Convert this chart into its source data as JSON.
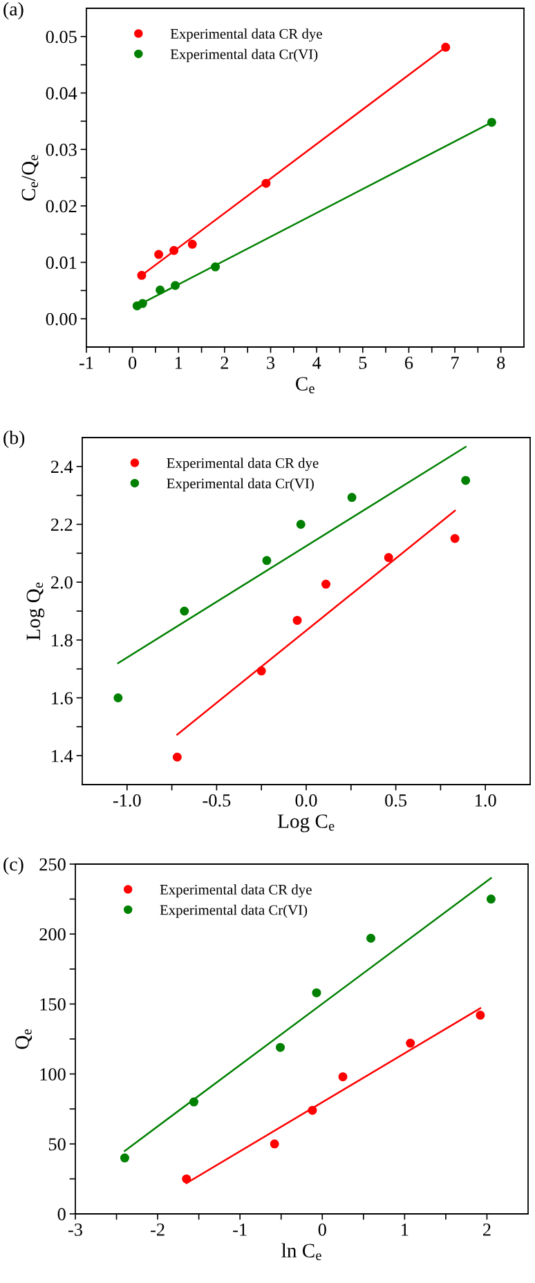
{
  "chart_data": [
    {
      "type": "scatter",
      "title": "(a)",
      "xlabel": "C$_{e}$",
      "ylabel": "C$_{e}$/Q$_{e}$",
      "xlim": [
        -1,
        8.5
      ],
      "xticks": [
        -1,
        {
          "value": -0.5,
          "label": null
        },
        0,
        {
          "value": 0.5,
          "label": null
        },
        1,
        {
          "value": 1.5,
          "label": null
        },
        2,
        {
          "value": 2.5,
          "label": null
        },
        3,
        {
          "value": 3.5,
          "label": null
        },
        4,
        {
          "value": 4.5,
          "label": null
        },
        5,
        {
          "value": 5.5,
          "label": null
        },
        6,
        {
          "value": 6.5,
          "label": null
        },
        7,
        {
          "value": 7.5,
          "label": null
        },
        8
      ],
      "ylim": [
        -0.005,
        0.055
      ],
      "yticks": [
        {
          "value": 0,
          "label": "0.00"
        },
        {
          "value": 0.005,
          "label": null
        },
        {
          "value": 0.01,
          "label": "0.01"
        },
        {
          "value": 0.015,
          "label": null
        },
        {
          "value": 0.02,
          "label": "0.02"
        },
        {
          "value": 0.025,
          "label": null
        },
        {
          "value": 0.03,
          "label": "0.03"
        },
        {
          "value": 0.035,
          "label": null
        },
        {
          "value": 0.04,
          "label": "0.04"
        },
        {
          "value": 0.045,
          "label": null
        },
        {
          "value": 0.05,
          "label": "0.05"
        }
      ],
      "marker": "circle",
      "legend": "top left",
      "grid": false,
      "series": [
        {
          "name": "Experimental data CR dye",
          "color": "#ff0000",
          "x": [
            0.2,
            0.57,
            0.9,
            1.3,
            2.9,
            6.8
          ],
          "values": [
            0.0077,
            0.0114,
            0.0121,
            0.0132,
            0.024,
            0.0481
          ]
        },
        {
          "name": "Experimental data Cr(VI)",
          "color": "#008000",
          "x": [
            0.1,
            0.22,
            0.6,
            0.93,
            1.8,
            7.8
          ],
          "values": [
            0.0023,
            0.0027,
            0.0051,
            0.0059,
            0.0092,
            0.0348
          ]
        },
        {
          "type": "line",
          "marker": "none",
          "color": "#ff0000",
          "x": [
            0.2,
            6.8
          ],
          "values": [
            0.0077,
            0.0481
          ]
        },
        {
          "type": "line",
          "marker": "none",
          "color": "#008000",
          "x": [
            0.1,
            7.8
          ],
          "values": [
            0.0023,
            0.0348
          ]
        }
      ]
    },
    {
      "type": "scatter",
      "title": "(b)",
      "xlabel": "Log C$_{e}$",
      "ylabel": "Log Q$_{e}$",
      "xlim": [
        -1.25,
        1.25
      ],
      "xticks": [
        {
          "value": -1.0,
          "label": "-1.0"
        },
        {
          "value": -0.75,
          "label": null
        },
        {
          "value": -0.5,
          "label": "-0.5"
        },
        {
          "value": -0.25,
          "label": null
        },
        {
          "value": 0,
          "label": "0.0"
        },
        {
          "value": 0.25,
          "label": null
        },
        {
          "value": 0.5,
          "label": "0.5"
        },
        {
          "value": 0.75,
          "label": null
        },
        {
          "value": 1.0,
          "label": "1.0"
        }
      ],
      "ylim": [
        1.3,
        2.5
      ],
      "yticks": [
        1.4,
        {
          "value": 1.5,
          "label": null
        },
        1.6,
        {
          "value": 1.7,
          "label": null
        },
        1.8,
        {
          "value": 1.9,
          "label": null
        },
        {
          "value": 2.0,
          "label": "2.0"
        },
        {
          "value": 2.1,
          "label": null
        },
        2.2,
        {
          "value": 2.3,
          "label": null
        },
        2.4
      ],
      "marker": "circle",
      "legend": "top left",
      "grid": false,
      "series": [
        {
          "name": "Experimental data CR dye",
          "color": "#ff0000",
          "x": [
            -0.72,
            -0.25,
            -0.05,
            0.11,
            0.46,
            0.83
          ],
          "values": [
            1.395,
            1.693,
            1.868,
            1.993,
            2.085,
            2.151
          ]
        },
        {
          "name": "Experimental data Cr(VI)",
          "color": "#008000",
          "x": [
            -1.05,
            -0.68,
            -0.22,
            -0.03,
            0.255,
            0.89
          ],
          "values": [
            1.6,
            1.9,
            2.075,
            2.2,
            2.293,
            2.352
          ]
        },
        {
          "type": "line",
          "marker": "none",
          "color": "#ff0000",
          "x": [
            -0.72,
            0.83
          ],
          "values": [
            1.473,
            2.247
          ]
        },
        {
          "type": "line",
          "marker": "none",
          "color": "#008000",
          "x": [
            -1.05,
            0.89
          ],
          "values": [
            1.72,
            2.468
          ]
        }
      ]
    },
    {
      "type": "scatter",
      "title": "(c)",
      "xlabel": "ln C$_{e}$",
      "ylabel": "Q$_{e}$",
      "xlim": [
        -3,
        2.5
      ],
      "xticks": [
        -3,
        {
          "value": -2.5,
          "label": null
        },
        -2,
        {
          "value": -1.5,
          "label": null
        },
        -1,
        {
          "value": -0.5,
          "label": null
        },
        0,
        {
          "value": 0.5,
          "label": null
        },
        1,
        {
          "value": 1.5,
          "label": null
        },
        2
      ],
      "ylim": [
        0,
        250
      ],
      "yticks": [
        0,
        {
          "value": 25,
          "label": null
        },
        50,
        {
          "value": 75,
          "label": null
        },
        100,
        {
          "value": 125,
          "label": null
        },
        150,
        {
          "value": 175,
          "label": null
        },
        200,
        {
          "value": 225,
          "label": null
        },
        250
      ],
      "marker": "circle",
      "legend": "top left",
      "grid": false,
      "series": [
        {
          "name": "Experimental data CR dye",
          "color": "#ff0000",
          "x": [
            -1.65,
            -0.58,
            -0.12,
            0.25,
            1.07,
            1.92
          ],
          "values": [
            25,
            50,
            74,
            98,
            122,
            142
          ]
        },
        {
          "name": "Experimental data Cr(VI)",
          "color": "#008000",
          "x": [
            -2.4,
            -1.56,
            -0.51,
            -0.07,
            0.59,
            2.05
          ],
          "values": [
            40,
            80,
            119,
            158,
            197,
            225
          ]
        },
        {
          "type": "line",
          "marker": "none",
          "color": "#ff0000",
          "x": [
            -1.65,
            1.92
          ],
          "values": [
            22,
            147
          ]
        },
        {
          "type": "line",
          "marker": "none",
          "color": "#008000",
          "x": [
            -2.4,
            2.05
          ],
          "values": [
            45,
            240
          ]
        }
      ]
    }
  ]
}
